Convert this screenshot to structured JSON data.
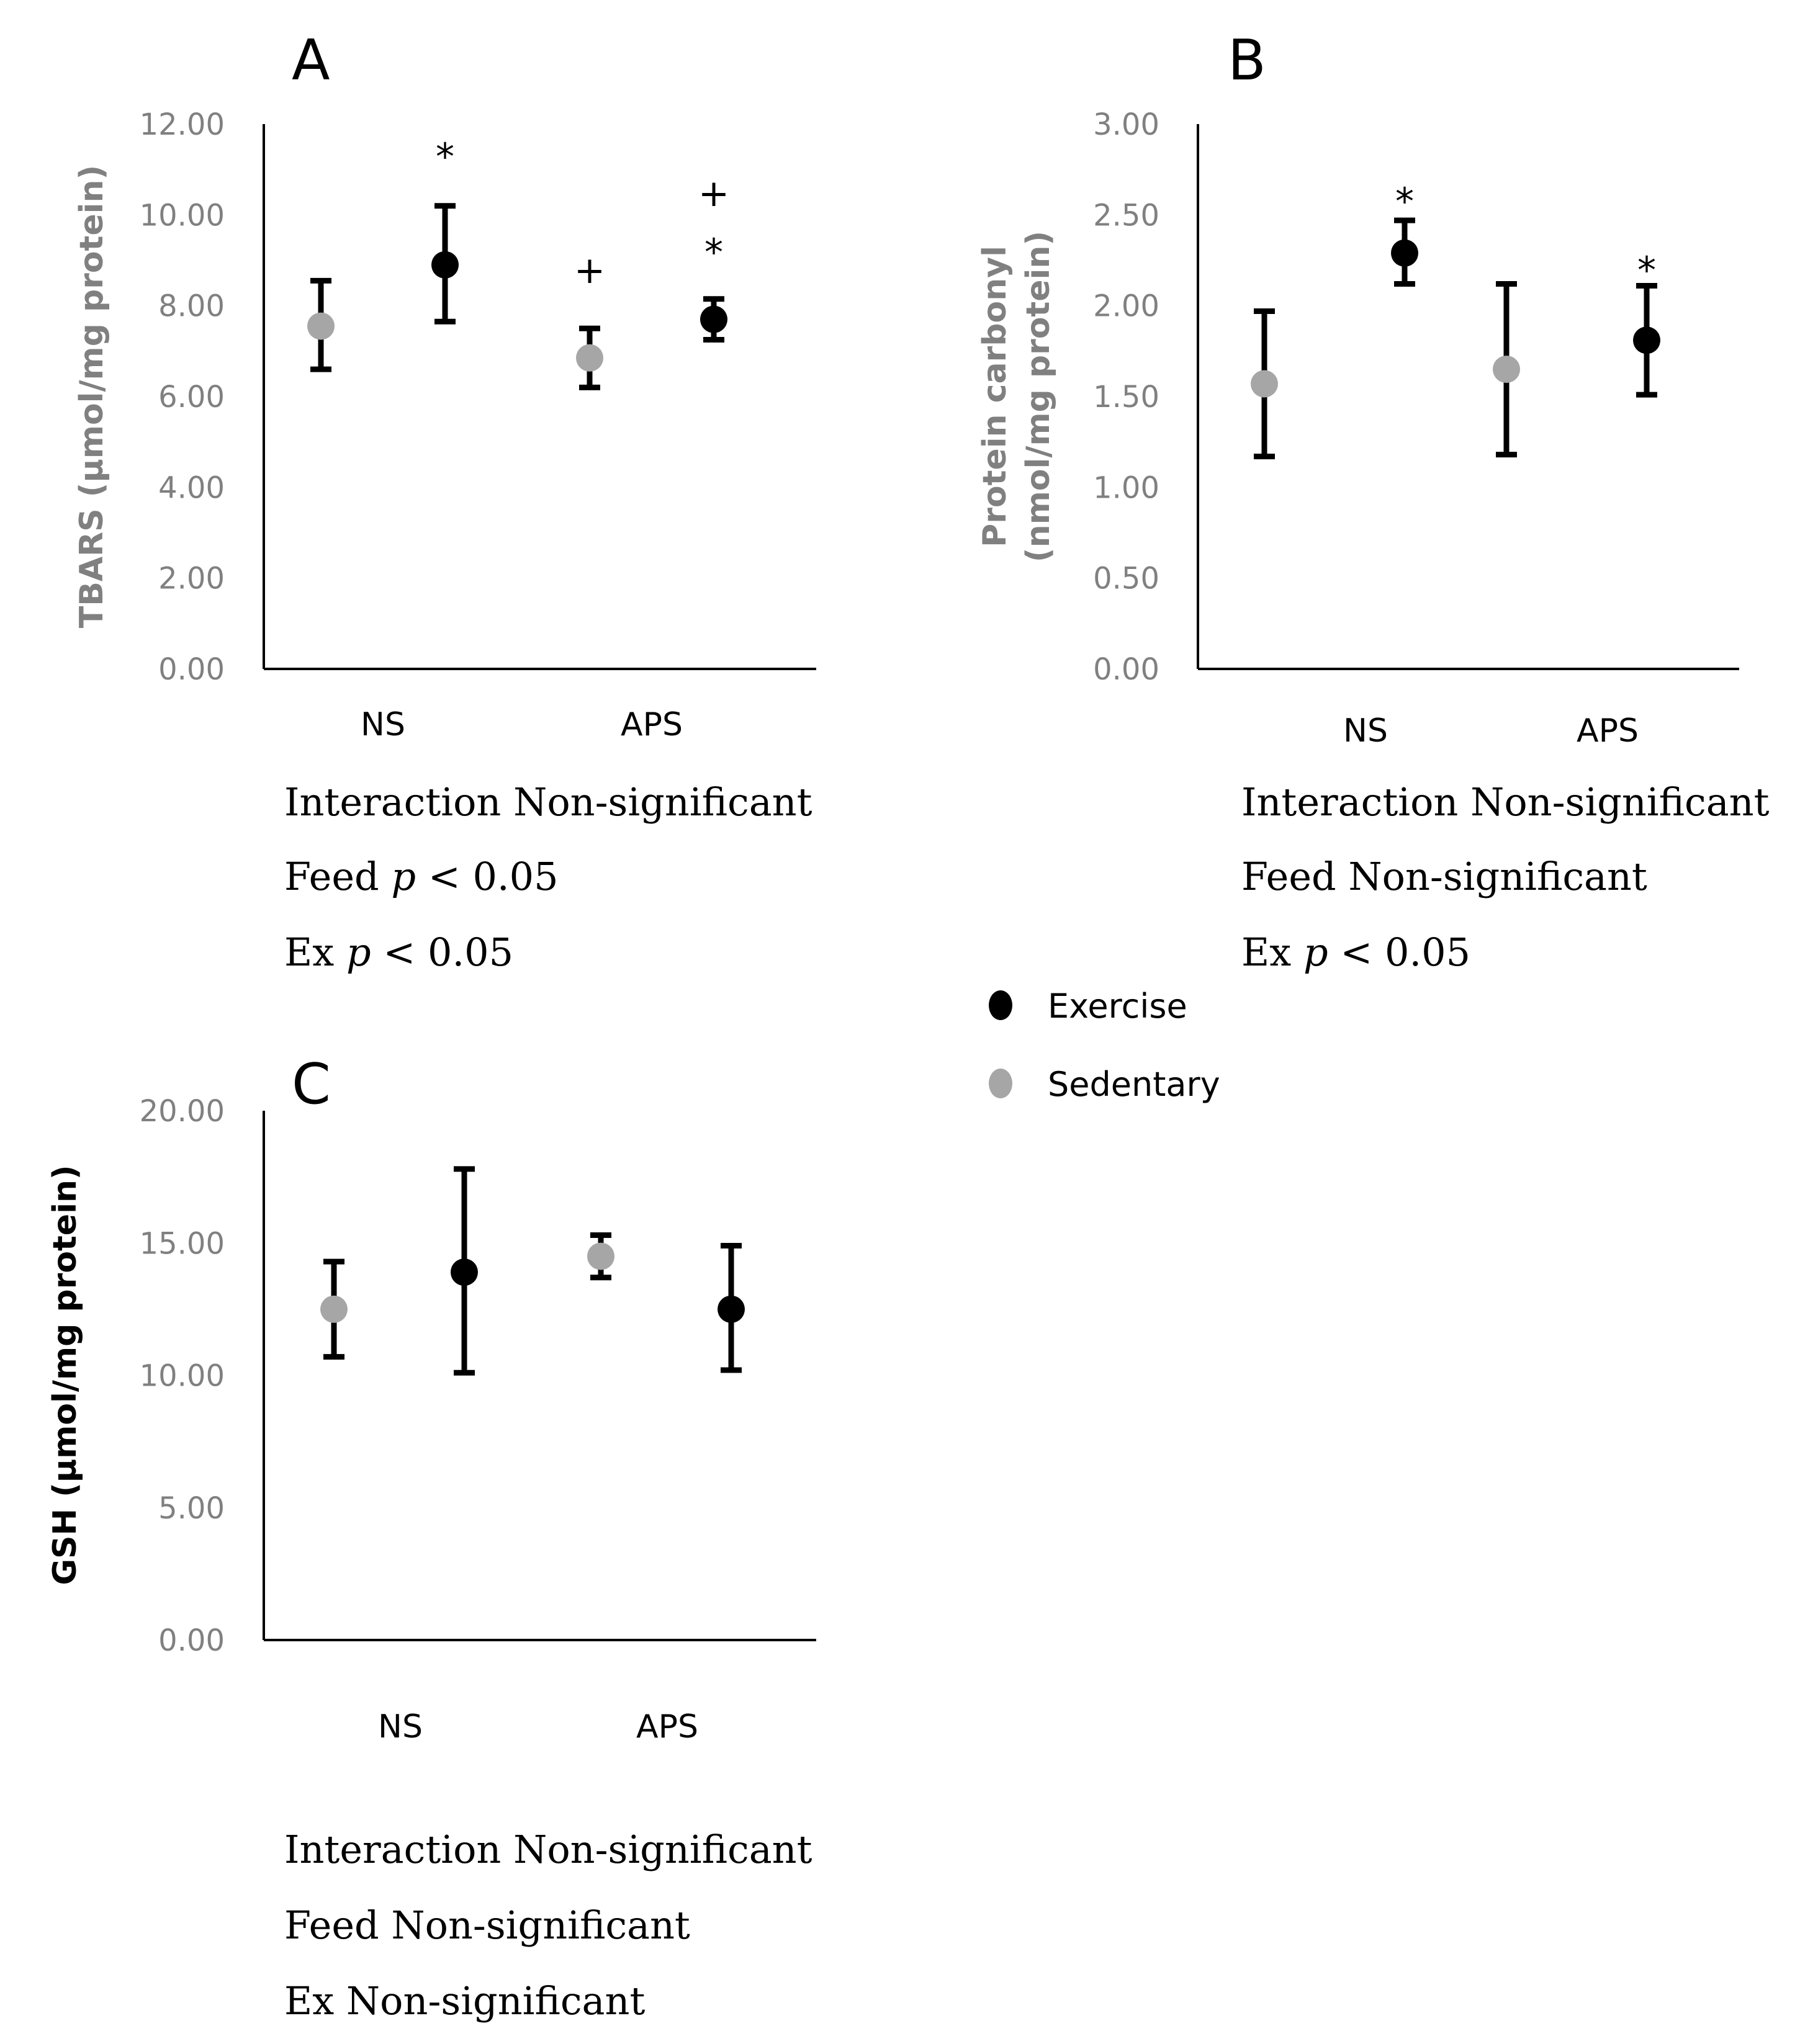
{
  "chart_data": [
    {
      "type": "scatter",
      "panel_label": "A",
      "categories": [
        "NS",
        "APS"
      ],
      "ylabel": "TBARS (μmol/mg protein)",
      "ylabel_color": "#808080",
      "ylim": [
        0,
        12
      ],
      "yticks": [
        "0.00",
        "2.00",
        "4.00",
        "6.00",
        "8.00",
        "10.00",
        "12.00"
      ],
      "series": [
        {
          "name": "Sedentary",
          "color": "#a6a6a6",
          "values": [
            7.55,
            6.85
          ],
          "err_low": [
            6.6,
            6.2
          ],
          "err_high": [
            8.55,
            7.5
          ]
        },
        {
          "name": "Exercise",
          "color": "#000000",
          "values": [
            8.9,
            7.7
          ],
          "err_low": [
            7.65,
            7.25
          ],
          "err_high": [
            10.2,
            8.15
          ]
        }
      ],
      "annotations": [
        {
          "text": "*",
          "category": 0,
          "series": "Exercise",
          "value": 11.3
        },
        {
          "text": "+",
          "category": 1,
          "series": "Sedentary",
          "value": 8.8
        },
        {
          "text": "+",
          "category": 1,
          "series": "Exercise",
          "value": 10.5
        },
        {
          "text": "*",
          "category": 1,
          "series": "Exercise",
          "value": 9.2
        }
      ],
      "stats": [
        "Interaction Non-significant",
        "Feed p < 0.05",
        "Ex p < 0.05"
      ]
    },
    {
      "type": "scatter",
      "panel_label": "B",
      "categories": [
        "NS",
        "APS"
      ],
      "ylabel": "Protein carbonyl",
      "ylabel2": "(nmol/mg protein)",
      "ylabel_color": "#808080",
      "ylim": [
        0,
        3
      ],
      "yticks": [
        "0.00",
        "0.50",
        "1.00",
        "1.50",
        "2.00",
        "2.50",
        "3.00"
      ],
      "series": [
        {
          "name": "Sedentary",
          "color": "#a6a6a6",
          "values": [
            1.57,
            1.65
          ],
          "err_low": [
            1.17,
            1.18
          ],
          "err_high": [
            1.97,
            2.12
          ]
        },
        {
          "name": "Exercise",
          "color": "#000000",
          "values": [
            2.29,
            1.81
          ],
          "err_low": [
            2.12,
            1.51
          ],
          "err_high": [
            2.47,
            2.11
          ]
        }
      ],
      "annotations": [
        {
          "text": "*",
          "category": 0,
          "series": "Exercise",
          "value": 2.58
        },
        {
          "text": "*",
          "category": 1,
          "series": "Exercise",
          "value": 2.2
        }
      ],
      "stats": [
        "Interaction Non-significant",
        "Feed Non-significant",
        "Ex p < 0.05"
      ]
    },
    {
      "type": "scatter",
      "panel_label": "C",
      "categories": [
        "NS",
        "APS"
      ],
      "ylabel": "GSH (μmol/mg protein)",
      "ylabel_color": "#000000",
      "ylim": [
        0,
        20
      ],
      "yticks": [
        "0.00",
        "5.00",
        "10.00",
        "15.00",
        "20.00"
      ],
      "series": [
        {
          "name": "Sedentary",
          "color": "#a6a6a6",
          "values": [
            12.5,
            14.5
          ],
          "err_low": [
            10.7,
            13.7
          ],
          "err_high": [
            14.3,
            15.3
          ]
        },
        {
          "name": "Exercise",
          "color": "#000000",
          "values": [
            13.9,
            12.5
          ],
          "err_low": [
            10.1,
            10.2
          ],
          "err_high": [
            17.8,
            14.9
          ]
        }
      ],
      "annotations": [],
      "stats": [
        "Interaction Non-significant",
        "Feed Non-significant",
        "Ex Non-significant"
      ]
    }
  ],
  "legend": [
    {
      "label": "Exercise",
      "color": "#000000"
    },
    {
      "label": "Sedentary",
      "color": "#a6a6a6"
    }
  ]
}
